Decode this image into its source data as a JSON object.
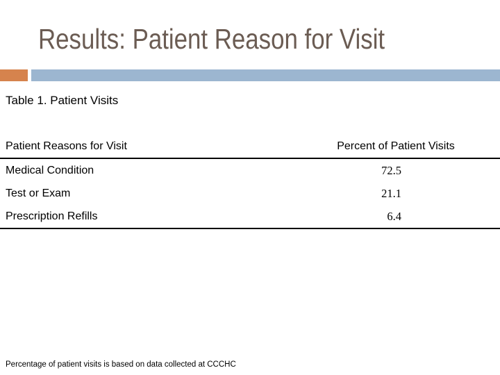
{
  "slide": {
    "title": "Results: Patient Reason for Visit",
    "caption": "Table 1. Patient Visits",
    "footnote": "Percentage of patient visits is based on data collected at CCCHC",
    "accent_colors": {
      "divider_orange": "#d6834d",
      "divider_blue": "#9cb6d0",
      "title_text": "#6b5c53"
    }
  },
  "table": {
    "headers": {
      "reason": "Patient Reasons for Visit",
      "percent": "Percent of Patient Visits"
    },
    "rows": [
      {
        "reason": "Medical Condition",
        "percent": "72.5"
      },
      {
        "reason": "Test or Exam",
        "percent": "21.1"
      },
      {
        "reason": "Prescription Refills",
        "percent": "6.4"
      }
    ]
  },
  "chart_data": {
    "type": "table",
    "title": "Table 1. Patient Visits",
    "columns": [
      "Patient Reasons for Visit",
      "Percent of Patient Visits"
    ],
    "rows": [
      [
        "Medical Condition",
        72.5
      ],
      [
        "Test or Exam",
        21.1
      ],
      [
        "Prescription Refills",
        6.4
      ]
    ],
    "footnote": "Percentage of patient visits is based on data collected at CCCHC"
  }
}
